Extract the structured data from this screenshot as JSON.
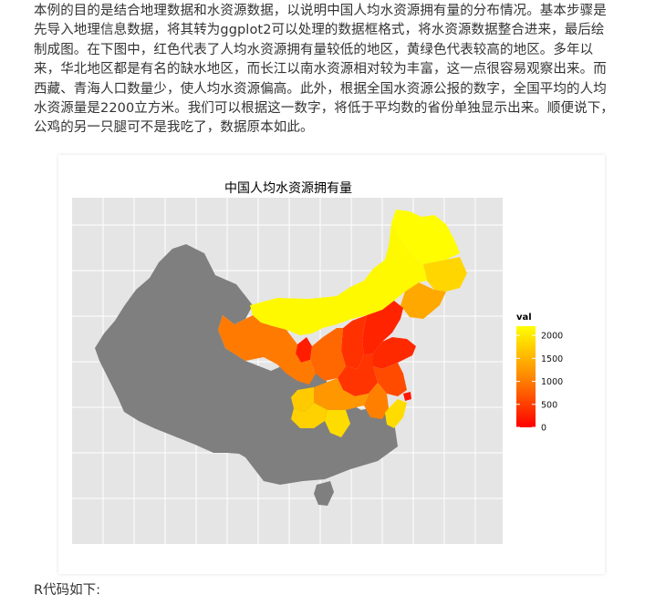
{
  "article": {
    "intro": "本例的目的是结合地理数据和水资源数据，以说明中国人均水资源拥有量的分布情况。基本步骤是先导入地理信息数据，将其转为ggplot2可以处理的数据框格式，将水资源数据整合进来，最后绘制成图。在下图中，红色代表了人均水资源拥有量较低的地区，黄绿色代表较高的地区。多年以来，华北地区都是有名的缺水地区，而长江以南水资源相对较为丰富，这一点很容易观察出来。而西藏、青海人口数量少，使人均水资源偏高。此外，根据全国水资源公报的数字，全国平均的人均水资源量是2200立方米。我们可以根据这一数字，将低于平均数的省份单独显示出来。顺便说下，公鸡的另一只腿可不是我吃了，数据原本如此。",
    "code_caption": "R代码如下:"
  },
  "chart_data": {
    "type": "map",
    "title": "中国人均水资源拥有量",
    "legend": {
      "title": "val",
      "placement": "right",
      "ticks": [
        0,
        500,
        1000,
        1500,
        2000
      ],
      "range": [
        0,
        2200
      ],
      "low_color": "#ff0000",
      "high_color": "#ffff00"
    },
    "missing_color": "#7f7f7f",
    "panel_color": "#e5e5e5",
    "grid": true,
    "regions": [
      {
        "name": "黑龙江",
        "value": 2180
      },
      {
        "name": "吉林",
        "value": 1850
      },
      {
        "name": "辽宁",
        "value": 1450
      },
      {
        "name": "内蒙古",
        "value": 2150
      },
      {
        "name": "北京",
        "value": 150
      },
      {
        "name": "天津",
        "value": 120
      },
      {
        "name": "河北",
        "value": 300
      },
      {
        "name": "山西",
        "value": 420
      },
      {
        "name": "山东",
        "value": 350
      },
      {
        "name": "河南",
        "value": 450
      },
      {
        "name": "江苏",
        "value": 650
      },
      {
        "name": "安徽",
        "value": 1100
      },
      {
        "name": "上海",
        "value": 200
      },
      {
        "name": "浙江",
        "value": 1900
      },
      {
        "name": "湖北",
        "value": 1300
      },
      {
        "name": "宁夏",
        "value": 250
      },
      {
        "name": "陕西",
        "value": 900
      },
      {
        "name": "甘肃",
        "value": 1050
      },
      {
        "name": "重庆",
        "value": 1750
      },
      {
        "name": "湖南",
        "value": 1900
      },
      {
        "name": "贵州",
        "value": 1800
      }
    ]
  }
}
